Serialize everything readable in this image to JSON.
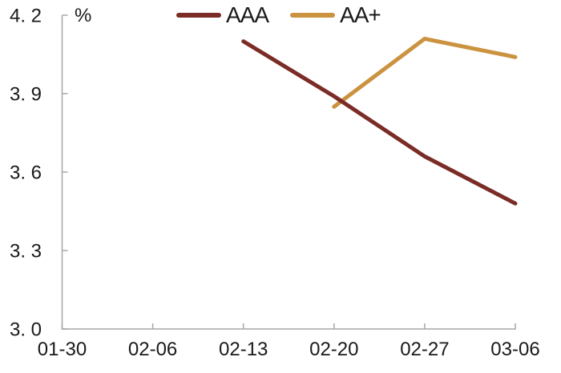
{
  "theme": {
    "background": "#FFFFFF",
    "axis_color": "#A7A7A7",
    "text_color": "#1A1A1A"
  },
  "chart_data": {
    "type": "line",
    "title": "",
    "unit_label": "%",
    "xlabel": "",
    "ylabel": "",
    "categories": [
      "01-30",
      "02-06",
      "02-13",
      "02-20",
      "02-27",
      "03-06"
    ],
    "series": [
      {
        "name": "AAA",
        "color": "#7B2C27",
        "points": [
          {
            "x": "02-13",
            "y": 4.1
          },
          {
            "x": "02-20",
            "y": 3.89
          },
          {
            "x": "02-27",
            "y": 3.66
          },
          {
            "x": "03-06",
            "y": 3.48
          }
        ]
      },
      {
        "name": "AA+",
        "color": "#CB9240",
        "points": [
          {
            "x": "02-20",
            "y": 3.85
          },
          {
            "x": "02-27",
            "y": 4.11
          },
          {
            "x": "03-06",
            "y": 4.04
          }
        ]
      }
    ],
    "ylim": [
      3.0,
      4.2
    ],
    "y_ticks": [
      {
        "value": 3.0,
        "label": "3. 0"
      },
      {
        "value": 3.3,
        "label": "3. 3"
      },
      {
        "value": 3.6,
        "label": "3. 6"
      },
      {
        "value": 3.9,
        "label": "3. 9"
      },
      {
        "value": 4.2,
        "label": "4. 2"
      }
    ],
    "grid": false,
    "legend_position": "top-center",
    "line_width": 5
  }
}
